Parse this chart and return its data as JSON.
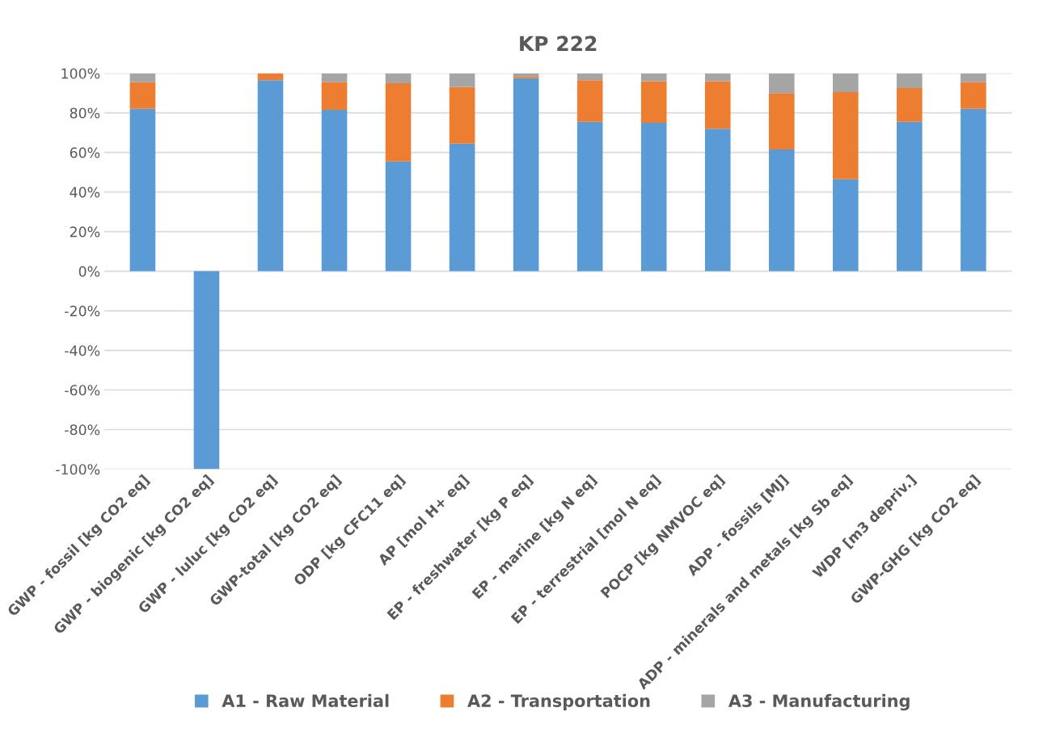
{
  "chart_data": {
    "type": "bar",
    "title": "KP 222",
    "stacked": true,
    "categories": [
      "GWP - fossil [kg CO2 eq]",
      "GWP - biogenic [kg CO2 eq]",
      "GWP - luluc [kg CO2 eq]",
      "GWP-total [kg CO2 eq]",
      "ODP [kg CFC11 eq]",
      "AP [mol H+ eq]",
      "EP - freshwater [kg P eq]",
      "EP - marine [kg N eq]",
      "EP - terrestrial [mol N eq]",
      "POCP [kg NMVOC eq]",
      "ADP - fossils [MJ]",
      "ADP - minerals and metals [kg Sb eq]",
      "WDP [m3 depriv.]",
      "GWP-GHG [kg CO2 eq]"
    ],
    "series": [
      {
        "name": "A1 - Raw Material",
        "color": "#5b9bd5",
        "values": [
          82,
          -100,
          96.5,
          81.5,
          55.5,
          64.5,
          97.5,
          75.5,
          75,
          72,
          61.5,
          46.5,
          75.5,
          82
        ]
      },
      {
        "name": "A2 - Transportation",
        "color": "#ed7d31",
        "values": [
          13.5,
          null,
          3.5,
          14,
          39.5,
          28.5,
          1,
          21,
          21,
          24,
          28.5,
          44,
          17,
          13.5
        ]
      },
      {
        "name": "A3 - Manufacturing",
        "color": "#a5a5a5",
        "values": [
          4.5,
          null,
          null,
          4.5,
          5,
          7,
          1.5,
          3.5,
          4,
          4,
          10,
          9.5,
          7.5,
          4.5
        ]
      }
    ],
    "ylim": [
      -100,
      100
    ],
    "yticks": [
      {
        "value": -100,
        "label": "-100%"
      },
      {
        "value": -80,
        "label": "-80%"
      },
      {
        "value": -60,
        "label": "-60%"
      },
      {
        "value": -40,
        "label": "-40%"
      },
      {
        "value": -20,
        "label": "-20%"
      },
      {
        "value": 0,
        "label": "0%"
      },
      {
        "value": 20,
        "label": "20%"
      },
      {
        "value": 40,
        "label": "40%"
      },
      {
        "value": 60,
        "label": "60%"
      },
      {
        "value": 80,
        "label": "80%"
      },
      {
        "value": 100,
        "label": "100%"
      }
    ],
    "grid": "y",
    "legend": "bottom"
  }
}
